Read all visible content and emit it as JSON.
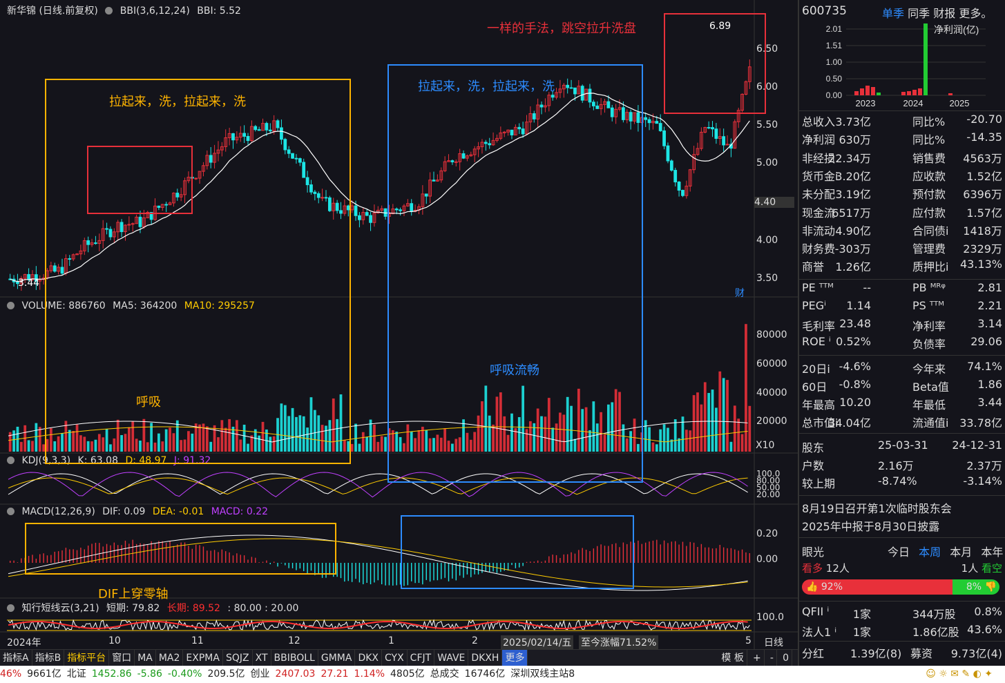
{
  "main_chart": {
    "title": "新华锦 (日线.前复权)",
    "bbi_label": "BBI(3,6,12,24)",
    "bbi_value": "BBI: 5.52",
    "price_ticks": [
      "6.50",
      "6.00",
      "5.50",
      "5.00",
      "4.40",
      "4.00",
      "3.50"
    ],
    "high_marker": "6.89",
    "low_marker": "3.44",
    "cai_badge": "财",
    "annotations": {
      "left_box": "拉起来，洗，拉起来，洗",
      "mid_box": "拉起来，洗，拉起来，洗",
      "right_box": "一样的手法，跳空拉升洗盘",
      "breath": "呼吸",
      "breath_smooth": "呼吸流畅",
      "dif_cross": "DIF上穿零轴"
    }
  },
  "volume": {
    "label": "VOLUME: 886760",
    "ma5": "MA5: 364200",
    "ma10": "MA10: 295257",
    "ticks": [
      "80000",
      "60000",
      "40000",
      "20000"
    ],
    "unit": "X10"
  },
  "kdj": {
    "label": "KDJ(9,3,3)",
    "k": "K: 63.08",
    "d": "D: 48.97",
    "j": "J: 91.32",
    "ticks": [
      "100.0",
      "80.00",
      "50.00",
      "20.00"
    ]
  },
  "macd": {
    "label": "MACD(12,26,9)",
    "dif": "DIF: 0.09",
    "dea": "DEA: -0.01",
    "macd": "MACD: 0.22",
    "ticks": [
      "0.20",
      "0.00"
    ]
  },
  "cloud": {
    "label": "知行短线云(3,21)",
    "short": "短期: 79.82",
    "long": "长期: 89.52",
    "levels": ": 80.00 : 20.00",
    "ticks": [
      "100.0"
    ]
  },
  "x_axis": {
    "labels": [
      "2024年",
      "10",
      "11",
      "12",
      "1",
      "2",
      "5"
    ],
    "cursor_date": "2025/02/14/五",
    "range_gain": "至今涨幅71.52%",
    "period": "日线"
  },
  "toolbar": {
    "items": [
      "指标A",
      "指标B",
      "指标平台",
      "窗口",
      "MA",
      "MA2",
      "EXPMA",
      "SQJZ",
      "XT",
      "BBIBOLL",
      "GMMA",
      "DKX",
      "CYX",
      "CFJT",
      "WAVE",
      "DKXH",
      "更多"
    ],
    "right": [
      "模 板",
      "+",
      "-",
      "0"
    ]
  },
  "panel": {
    "code": "600735",
    "tabs": [
      "单季",
      "同季",
      "财报",
      "更多。"
    ],
    "profit_title": "净利润(亿)",
    "profit_ticks": [
      "2.01",
      "1.51",
      "1.00",
      "0.50",
      "0.00"
    ],
    "profit_years": [
      "2023",
      "2024",
      "2025"
    ],
    "fin_rows": [
      [
        "总收入",
        "3.73亿",
        "同比%",
        "-20.70"
      ],
      [
        "净利润",
        "630万",
        "同比%",
        "-14.35"
      ],
      [
        "非经损",
        "22.34万",
        "销售费",
        "4563万"
      ],
      [
        "货币金i",
        "3.20亿",
        "应收款",
        "1.52亿"
      ],
      [
        "未分配",
        "3.19亿",
        "预付款",
        "6396万"
      ],
      [
        "现金流",
        "6517万",
        "应付款",
        "1.57亿"
      ],
      [
        "非流动",
        "4.90亿",
        "合同债i",
        "1418万"
      ],
      [
        "财务费",
        "-303万",
        "管理费",
        "2329万"
      ],
      [
        "商誉",
        "1.26亿",
        "质押比i",
        "43.13%"
      ]
    ],
    "val_rows": [
      [
        "PE ᵀᵀᴹ",
        "--",
        "PB ᴹᴿᵠ",
        "2.81"
      ],
      [
        "PEGⁱ",
        "1.14",
        "PS ᵀᵀᴹ",
        "2.21"
      ],
      [
        "毛利率",
        "23.48",
        "净利率",
        "3.14"
      ],
      [
        "ROE ⁱ",
        "0.52%",
        "负债率",
        "29.06"
      ]
    ],
    "perf_rows": [
      [
        "20日i",
        "-4.6%",
        "今年来",
        "74.1%"
      ],
      [
        "60日",
        "-0.8%",
        "Beta值",
        "1.86"
      ],
      [
        "年最高",
        "10.20",
        "年最低",
        "3.44"
      ],
      [
        "总市值i",
        "34.04亿",
        "流通值i",
        "33.78亿"
      ]
    ],
    "holder_rows": [
      [
        "股东",
        "25-03-31",
        "24-12-31"
      ],
      [
        "户数",
        "2.16万",
        "2.37万"
      ],
      [
        "较上期",
        "-8.74%",
        "-3.14%"
      ]
    ],
    "news": [
      "8月19日召开第1次临时股东会",
      "2025年中报于8月30日披露"
    ],
    "vision": {
      "label": "眼光",
      "tabs": [
        "今日",
        "本周",
        "本月",
        "本年"
      ],
      "bull_label": "看多",
      "bull_count": "12人",
      "bear_count": "1人",
      "bear_label": "看空",
      "bull_pct": "92%",
      "bear_pct": "8%"
    },
    "inst_rows": [
      [
        "QFII ⁱ",
        "1家",
        "344万股",
        "0.8%"
      ],
      [
        "法人1 ⁱ",
        "1家",
        "1.86亿股",
        "43.6%"
      ]
    ],
    "dividend": [
      "分红",
      "1.39亿(8)",
      "募资",
      "9.73亿(4)"
    ]
  },
  "status_bar": {
    "items": [
      "46%",
      "9661亿",
      "北证",
      "1452.86",
      "-5.86",
      "-0.40%",
      "209.5亿",
      "创业",
      "2407.03",
      "27.21",
      "1.14%",
      "4805亿",
      "总成交",
      "16746亿",
      "深圳双线主站8"
    ]
  },
  "colors": {
    "up": "#e8303a",
    "down": "#1de5e5",
    "yellow": "#ffcc00",
    "blue": "#2d8cff",
    "orange": "#ffb400",
    "white": "#ffffff",
    "purple": "#c040ff",
    "green": "#22cc33"
  }
}
